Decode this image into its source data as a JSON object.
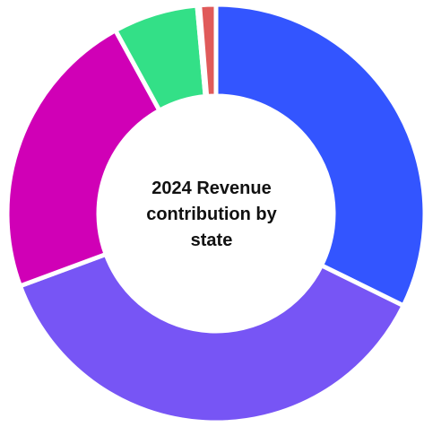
{
  "chart_data": {
    "type": "pie",
    "variant": "donut",
    "title_lines": [
      "2024 Revenue",
      "contribution by",
      "state"
    ],
    "categories": [
      "",
      "",
      "",
      "",
      "",
      ""
    ],
    "values": [
      33.5,
      38.5,
      23.5,
      6.8,
      0.2,
      1.3
    ],
    "colors": [
      "#3355ff",
      "#7755f5",
      "#d000b6",
      "#33e087",
      "#3ad6d6",
      "#e05a5a"
    ],
    "start_angle_deg": 0,
    "direction": "clockwise",
    "legend": "none",
    "data_labels": "none"
  }
}
